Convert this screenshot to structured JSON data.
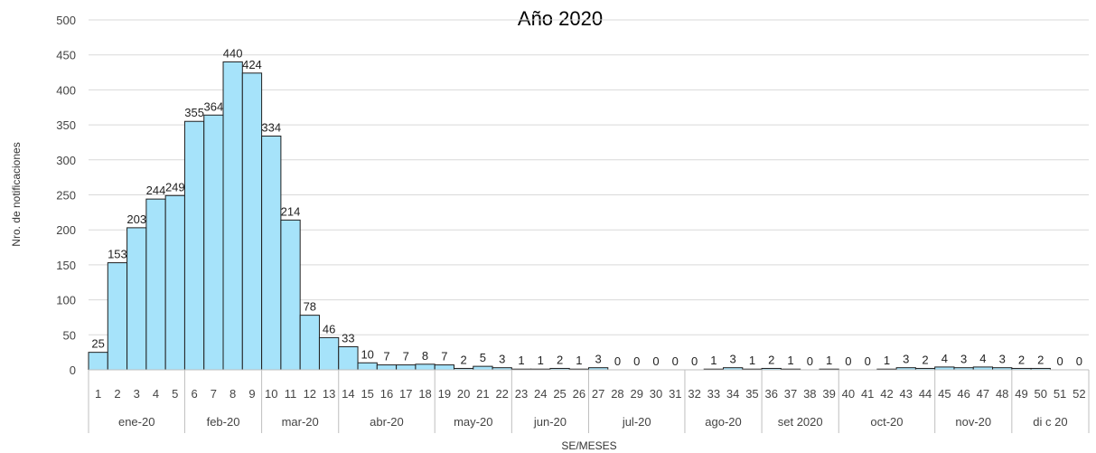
{
  "chart_data": {
    "type": "bar",
    "title": "Año 2020",
    "xlabel": "SE/MESES",
    "ylabel": "Nro. de notificaciones",
    "ylim": [
      0,
      500
    ],
    "yticks": [
      0,
      50,
      100,
      150,
      200,
      250,
      300,
      350,
      400,
      450,
      500
    ],
    "grid": true,
    "bar_color": "#a6e3fa",
    "categories": [
      "1",
      "2",
      "3",
      "4",
      "5",
      "6",
      "7",
      "8",
      "9",
      "10",
      "11",
      "12",
      "13",
      "14",
      "15",
      "16",
      "17",
      "18",
      "19",
      "20",
      "21",
      "22",
      "23",
      "24",
      "25",
      "26",
      "27",
      "28",
      "29",
      "30",
      "31",
      "32",
      "33",
      "34",
      "35",
      "36",
      "37",
      "38",
      "39",
      "40",
      "41",
      "42",
      "43",
      "44",
      "45",
      "46",
      "47",
      "48",
      "49",
      "50",
      "51",
      "52"
    ],
    "values": [
      25,
      153,
      203,
      244,
      249,
      355,
      364,
      440,
      424,
      334,
      214,
      78,
      46,
      33,
      10,
      7,
      7,
      8,
      7,
      2,
      5,
      3,
      1,
      1,
      2,
      1,
      3,
      0,
      0,
      0,
      0,
      0,
      1,
      3,
      1,
      2,
      1,
      0,
      1,
      0,
      0,
      1,
      3,
      2,
      4,
      3,
      4,
      3,
      2,
      2,
      0,
      0
    ],
    "month_groups": [
      {
        "label": "ene-20",
        "start": 1,
        "end": 5
      },
      {
        "label": "feb-20",
        "start": 6,
        "end": 9
      },
      {
        "label": "mar-20",
        "start": 10,
        "end": 13
      },
      {
        "label": "abr-20",
        "start": 14,
        "end": 18
      },
      {
        "label": "may-20",
        "start": 19,
        "end": 22
      },
      {
        "label": "jun-20",
        "start": 23,
        "end": 26
      },
      {
        "label": "jul-20",
        "start": 27,
        "end": 31
      },
      {
        "label": "ago-20",
        "start": 32,
        "end": 35
      },
      {
        "label": "set 2020",
        "start": 36,
        "end": 39
      },
      {
        "label": "oct-20",
        "start": 40,
        "end": 44
      },
      {
        "label": "nov-20",
        "start": 45,
        "end": 48
      },
      {
        "label": "di c 20",
        "start": 49,
        "end": 52
      }
    ]
  }
}
